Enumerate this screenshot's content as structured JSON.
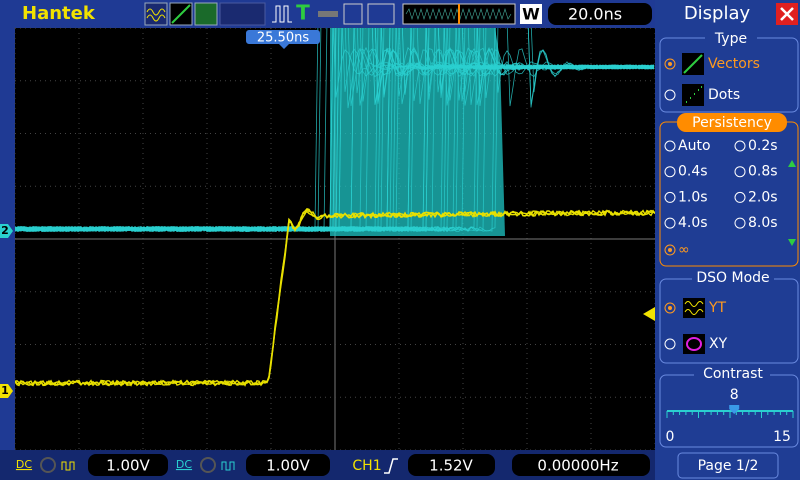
{
  "header": {
    "brand": "Hantek",
    "trigger_mark": "T",
    "window": "W",
    "timebase": "20.0ns"
  },
  "screen": {
    "cursor_label": "25.50ns",
    "channel_markers": [
      "1",
      "2"
    ]
  },
  "panel": {
    "title": "Display",
    "type": {
      "heading": "Type",
      "options": [
        "Vectors",
        "Dots"
      ]
    },
    "persistency": {
      "heading": "Persistency",
      "options": [
        "Auto",
        "0.2s",
        "0.4s",
        "0.8s",
        "1.0s",
        "2.0s",
        "4.0s",
        "8.0s",
        "∞"
      ]
    },
    "dso_mode": {
      "heading": "DSO Mode",
      "options": [
        "YT",
        "XY"
      ]
    },
    "contrast": {
      "heading": "Contrast",
      "value": 8,
      "min": 0,
      "max": 15
    },
    "page": "Page 1/2"
  },
  "footer": {
    "ch1_coupling": "DC",
    "ch1_scale": "1.00V",
    "ch2_coupling": "DC",
    "ch2_scale": "1.00V",
    "trigger_source": "CH1",
    "trigger_level": "1.52V",
    "frequency": "0.00000Hz"
  }
}
